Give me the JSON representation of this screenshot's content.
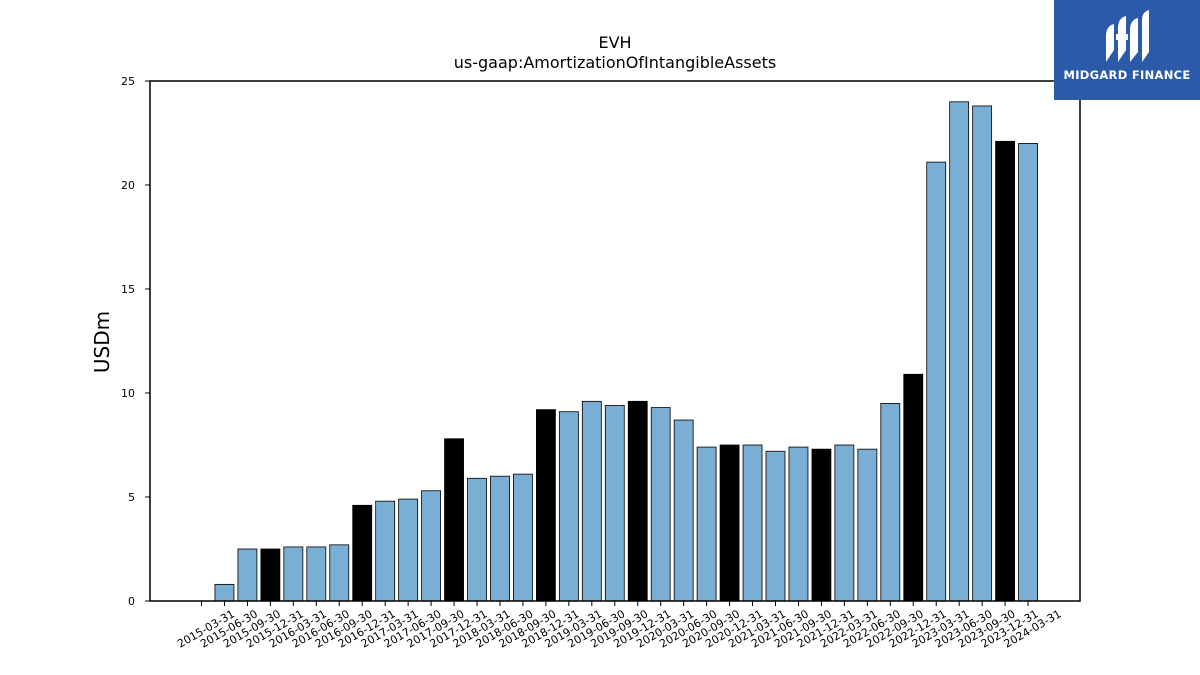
{
  "logo": {
    "text": "MIDGARD FINANCE",
    "background": "#2b5aa8"
  },
  "chart_data": {
    "type": "bar",
    "title": "EVH",
    "subtitle": "us-gaap:AmortizationOfIntangibleAssets",
    "xlabel": "",
    "ylabel": "USDm",
    "ylim": [
      0,
      25
    ],
    "yticks": [
      0,
      5,
      10,
      15,
      20,
      25
    ],
    "grid": false,
    "colors": {
      "quarter": "#7aaed4",
      "year_end": "#000000",
      "edge": "#000000"
    },
    "categories": [
      "2015-03-31",
      "2015-06-30",
      "2015-09-30",
      "2015-12-31",
      "2016-03-31",
      "2016-06-30",
      "2016-09-30",
      "2016-12-31",
      "2017-03-31",
      "2017-06-30",
      "2017-09-30",
      "2017-12-31",
      "2018-03-31",
      "2018-06-30",
      "2018-09-30",
      "2018-12-31",
      "2019-03-31",
      "2019-06-30",
      "2019-09-30",
      "2019-12-31",
      "2020-03-31",
      "2020-06-30",
      "2020-09-30",
      "2020-12-31",
      "2021-03-31",
      "2021-06-30",
      "2021-09-30",
      "2021-12-31",
      "2022-03-31",
      "2022-06-30",
      "2022-09-30",
      "2022-12-31",
      "2023-03-31",
      "2023-06-30",
      "2023-09-30",
      "2023-12-31",
      "2024-03-31"
    ],
    "values": [
      0,
      0.8,
      2.5,
      2.5,
      2.6,
      2.6,
      2.7,
      4.6,
      4.8,
      4.9,
      5.3,
      7.8,
      5.9,
      6.0,
      6.1,
      9.2,
      9.1,
      9.6,
      9.4,
      9.6,
      9.3,
      8.7,
      7.4,
      7.5,
      7.5,
      7.2,
      7.4,
      7.3,
      7.5,
      7.3,
      9.5,
      10.9,
      21.1,
      24.0,
      23.8,
      22.1,
      22.0
    ],
    "year_end": [
      false,
      false,
      false,
      true,
      false,
      false,
      false,
      true,
      false,
      false,
      false,
      true,
      false,
      false,
      false,
      true,
      false,
      false,
      false,
      true,
      false,
      false,
      false,
      true,
      false,
      false,
      false,
      true,
      false,
      false,
      false,
      true,
      false,
      false,
      false,
      true,
      false
    ]
  }
}
